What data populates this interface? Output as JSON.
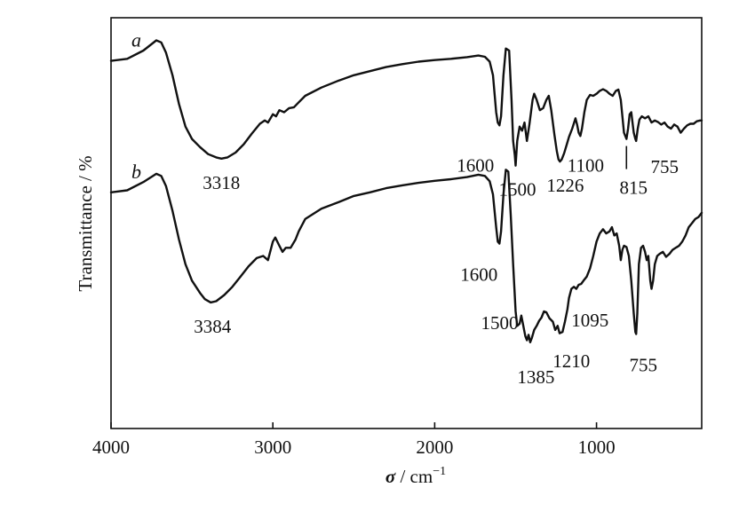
{
  "chart_data": {
    "type": "line",
    "title": "",
    "xlabel": {
      "symbol": "σ",
      "separator": " / ",
      "unit": "cm",
      "exponent": "−1"
    },
    "ylabel": "Transmittance / %",
    "xlim": [
      4000,
      350
    ],
    "x_reversed": true,
    "xticks": [
      4000,
      3000,
      2000,
      1000
    ],
    "y_ticks_labeled": false,
    "grid": false,
    "series": [
      {
        "name": "a",
        "points": [
          [
            4000,
            0.895
          ],
          [
            3900,
            0.9
          ],
          [
            3800,
            0.92
          ],
          [
            3720,
            0.945
          ],
          [
            3690,
            0.94
          ],
          [
            3660,
            0.915
          ],
          [
            3620,
            0.86
          ],
          [
            3580,
            0.79
          ],
          [
            3540,
            0.735
          ],
          [
            3500,
            0.705
          ],
          [
            3450,
            0.685
          ],
          [
            3400,
            0.668
          ],
          [
            3350,
            0.66
          ],
          [
            3318,
            0.657
          ],
          [
            3280,
            0.66
          ],
          [
            3230,
            0.672
          ],
          [
            3180,
            0.692
          ],
          [
            3130,
            0.718
          ],
          [
            3080,
            0.742
          ],
          [
            3050,
            0.75
          ],
          [
            3030,
            0.745
          ],
          [
            3000,
            0.765
          ],
          [
            2980,
            0.76
          ],
          [
            2960,
            0.775
          ],
          [
            2930,
            0.77
          ],
          [
            2900,
            0.78
          ],
          [
            2870,
            0.782
          ],
          [
            2850,
            0.79
          ],
          [
            2800,
            0.81
          ],
          [
            2700,
            0.83
          ],
          [
            2600,
            0.846
          ],
          [
            2500,
            0.86
          ],
          [
            2400,
            0.87
          ],
          [
            2300,
            0.88
          ],
          [
            2200,
            0.887
          ],
          [
            2100,
            0.893
          ],
          [
            2000,
            0.897
          ],
          [
            1900,
            0.9
          ],
          [
            1800,
            0.904
          ],
          [
            1730,
            0.908
          ],
          [
            1690,
            0.905
          ],
          [
            1660,
            0.893
          ],
          [
            1640,
            0.86
          ],
          [
            1620,
            0.77
          ],
          [
            1610,
            0.745
          ],
          [
            1600,
            0.738
          ],
          [
            1590,
            0.76
          ],
          [
            1575,
            0.86
          ],
          [
            1560,
            0.925
          ],
          [
            1540,
            0.92
          ],
          [
            1525,
            0.8
          ],
          [
            1515,
            0.7
          ],
          [
            1505,
            0.665
          ],
          [
            1500,
            0.64
          ],
          [
            1490,
            0.7
          ],
          [
            1475,
            0.735
          ],
          [
            1460,
            0.725
          ],
          [
            1445,
            0.745
          ],
          [
            1430,
            0.7
          ],
          [
            1415,
            0.74
          ],
          [
            1395,
            0.8
          ],
          [
            1385,
            0.815
          ],
          [
            1370,
            0.8
          ],
          [
            1350,
            0.775
          ],
          [
            1330,
            0.78
          ],
          [
            1310,
            0.8
          ],
          [
            1295,
            0.81
          ],
          [
            1280,
            0.775
          ],
          [
            1260,
            0.715
          ],
          [
            1245,
            0.675
          ],
          [
            1235,
            0.655
          ],
          [
            1226,
            0.65
          ],
          [
            1215,
            0.655
          ],
          [
            1200,
            0.67
          ],
          [
            1185,
            0.69
          ],
          [
            1170,
            0.71
          ],
          [
            1150,
            0.73
          ],
          [
            1130,
            0.755
          ],
          [
            1120,
            0.74
          ],
          [
            1110,
            0.72
          ],
          [
            1100,
            0.712
          ],
          [
            1090,
            0.73
          ],
          [
            1075,
            0.77
          ],
          [
            1060,
            0.8
          ],
          [
            1040,
            0.812
          ],
          [
            1020,
            0.81
          ],
          [
            1000,
            0.815
          ],
          [
            980,
            0.822
          ],
          [
            960,
            0.826
          ],
          [
            940,
            0.822
          ],
          [
            920,
            0.815
          ],
          [
            900,
            0.81
          ],
          [
            880,
            0.822
          ],
          [
            865,
            0.825
          ],
          [
            850,
            0.8
          ],
          [
            840,
            0.76
          ],
          [
            830,
            0.72
          ],
          [
            820,
            0.71
          ],
          [
            815,
            0.705
          ],
          [
            805,
            0.73
          ],
          [
            795,
            0.765
          ],
          [
            785,
            0.77
          ],
          [
            770,
            0.72
          ],
          [
            760,
            0.705
          ],
          [
            755,
            0.7
          ],
          [
            745,
            0.73
          ],
          [
            735,
            0.752
          ],
          [
            720,
            0.76
          ],
          [
            700,
            0.755
          ],
          [
            680,
            0.76
          ],
          [
            660,
            0.745
          ],
          [
            640,
            0.75
          ],
          [
            620,
            0.746
          ],
          [
            600,
            0.74
          ],
          [
            580,
            0.745
          ],
          [
            560,
            0.735
          ],
          [
            540,
            0.73
          ],
          [
            520,
            0.74
          ],
          [
            500,
            0.735
          ],
          [
            480,
            0.72
          ],
          [
            460,
            0.73
          ],
          [
            440,
            0.738
          ],
          [
            420,
            0.742
          ],
          [
            400,
            0.742
          ],
          [
            380,
            0.748
          ],
          [
            360,
            0.75
          ],
          [
            350,
            0.75
          ]
        ]
      },
      {
        "name": "b",
        "points": [
          [
            4000,
            0.575
          ],
          [
            3900,
            0.58
          ],
          [
            3800,
            0.6
          ],
          [
            3720,
            0.62
          ],
          [
            3690,
            0.615
          ],
          [
            3660,
            0.59
          ],
          [
            3620,
            0.53
          ],
          [
            3580,
            0.46
          ],
          [
            3540,
            0.4
          ],
          [
            3500,
            0.36
          ],
          [
            3450,
            0.33
          ],
          [
            3420,
            0.315
          ],
          [
            3384,
            0.307
          ],
          [
            3350,
            0.31
          ],
          [
            3300,
            0.325
          ],
          [
            3250,
            0.345
          ],
          [
            3200,
            0.37
          ],
          [
            3150,
            0.395
          ],
          [
            3100,
            0.415
          ],
          [
            3060,
            0.42
          ],
          [
            3030,
            0.41
          ],
          [
            3000,
            0.455
          ],
          [
            2985,
            0.465
          ],
          [
            2960,
            0.445
          ],
          [
            2940,
            0.43
          ],
          [
            2920,
            0.44
          ],
          [
            2890,
            0.44
          ],
          [
            2860,
            0.46
          ],
          [
            2840,
            0.48
          ],
          [
            2800,
            0.51
          ],
          [
            2700,
            0.535
          ],
          [
            2600,
            0.55
          ],
          [
            2500,
            0.566
          ],
          [
            2400,
            0.575
          ],
          [
            2300,
            0.585
          ],
          [
            2200,
            0.592
          ],
          [
            2100,
            0.598
          ],
          [
            2000,
            0.603
          ],
          [
            1900,
            0.607
          ],
          [
            1800,
            0.612
          ],
          [
            1730,
            0.618
          ],
          [
            1690,
            0.615
          ],
          [
            1660,
            0.602
          ],
          [
            1640,
            0.57
          ],
          [
            1620,
            0.49
          ],
          [
            1610,
            0.455
          ],
          [
            1600,
            0.45
          ],
          [
            1590,
            0.48
          ],
          [
            1575,
            0.57
          ],
          [
            1560,
            0.63
          ],
          [
            1545,
            0.625
          ],
          [
            1530,
            0.52
          ],
          [
            1515,
            0.4
          ],
          [
            1500,
            0.285
          ],
          [
            1490,
            0.25
          ],
          [
            1475,
            0.255
          ],
          [
            1465,
            0.275
          ],
          [
            1455,
            0.255
          ],
          [
            1440,
            0.225
          ],
          [
            1430,
            0.215
          ],
          [
            1420,
            0.228
          ],
          [
            1410,
            0.21
          ],
          [
            1400,
            0.22
          ],
          [
            1385,
            0.24
          ],
          [
            1370,
            0.25
          ],
          [
            1355,
            0.262
          ],
          [
            1340,
            0.27
          ],
          [
            1325,
            0.285
          ],
          [
            1310,
            0.283
          ],
          [
            1290,
            0.268
          ],
          [
            1270,
            0.26
          ],
          [
            1255,
            0.24
          ],
          [
            1240,
            0.25
          ],
          [
            1228,
            0.232
          ],
          [
            1210,
            0.235
          ],
          [
            1195,
            0.26
          ],
          [
            1180,
            0.29
          ],
          [
            1170,
            0.318
          ],
          [
            1155,
            0.34
          ],
          [
            1140,
            0.345
          ],
          [
            1125,
            0.34
          ],
          [
            1110,
            0.35
          ],
          [
            1095,
            0.352
          ],
          [
            1080,
            0.36
          ],
          [
            1060,
            0.37
          ],
          [
            1040,
            0.39
          ],
          [
            1020,
            0.42
          ],
          [
            1000,
            0.455
          ],
          [
            980,
            0.475
          ],
          [
            960,
            0.485
          ],
          [
            940,
            0.475
          ],
          [
            920,
            0.48
          ],
          [
            905,
            0.49
          ],
          [
            890,
            0.47
          ],
          [
            875,
            0.475
          ],
          [
            860,
            0.445
          ],
          [
            850,
            0.41
          ],
          [
            840,
            0.435
          ],
          [
            830,
            0.445
          ],
          [
            815,
            0.442
          ],
          [
            800,
            0.42
          ],
          [
            785,
            0.36
          ],
          [
            770,
            0.28
          ],
          [
            760,
            0.235
          ],
          [
            755,
            0.23
          ],
          [
            748,
            0.28
          ],
          [
            738,
            0.4
          ],
          [
            725,
            0.44
          ],
          [
            712,
            0.445
          ],
          [
            700,
            0.43
          ],
          [
            690,
            0.41
          ],
          [
            680,
            0.42
          ],
          [
            668,
            0.36
          ],
          [
            660,
            0.34
          ],
          [
            650,
            0.36
          ],
          [
            640,
            0.4
          ],
          [
            625,
            0.42
          ],
          [
            610,
            0.425
          ],
          [
            590,
            0.43
          ],
          [
            570,
            0.418
          ],
          [
            550,
            0.425
          ],
          [
            530,
            0.435
          ],
          [
            510,
            0.44
          ],
          [
            490,
            0.445
          ],
          [
            470,
            0.455
          ],
          [
            450,
            0.47
          ],
          [
            430,
            0.49
          ],
          [
            410,
            0.5
          ],
          [
            390,
            0.51
          ],
          [
            370,
            0.515
          ],
          [
            350,
            0.525
          ]
        ]
      }
    ],
    "annotations": [
      {
        "text": "3318",
        "x": 3318,
        "series": "a"
      },
      {
        "text": "1600",
        "x": 1600,
        "series": "a"
      },
      {
        "text": "1500",
        "x": 1500,
        "series": "a"
      },
      {
        "text": "1226",
        "x": 1226,
        "series": "a"
      },
      {
        "text": "1100",
        "x": 1100,
        "series": "a"
      },
      {
        "text": "815",
        "x": 815,
        "series": "a"
      },
      {
        "text": "755",
        "x": 755,
        "series": "a"
      },
      {
        "text": "3384",
        "x": 3384,
        "series": "b"
      },
      {
        "text": "1600",
        "x": 1600,
        "series": "b"
      },
      {
        "text": "1500",
        "x": 1500,
        "series": "b"
      },
      {
        "text": "1385",
        "x": 1385,
        "series": "b"
      },
      {
        "text": "1210",
        "x": 1210,
        "series": "b"
      },
      {
        "text": "1095",
        "x": 1095,
        "series": "b"
      },
      {
        "text": "755",
        "x": 755,
        "series": "b"
      }
    ]
  }
}
